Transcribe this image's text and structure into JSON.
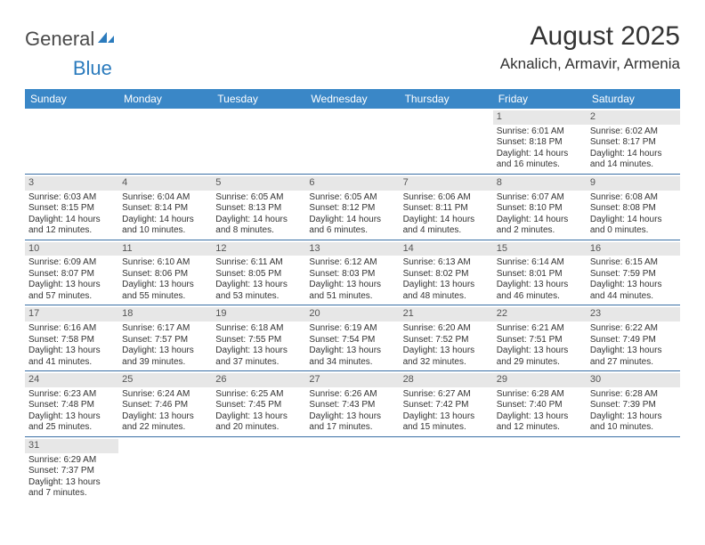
{
  "brand": {
    "general": "General",
    "blue": "Blue"
  },
  "title": "August 2025",
  "location": "Aknalich, Armavir, Armenia",
  "colors": {
    "headerBar": "#3a87c7",
    "rowDivider": "#3a6fa5",
    "dayNumBg": "#e7e7e7",
    "text": "#333333",
    "logoBlue": "#2b7bbd"
  },
  "dayHeaders": [
    "Sunday",
    "Monday",
    "Tuesday",
    "Wednesday",
    "Thursday",
    "Friday",
    "Saturday"
  ],
  "weeks": [
    [
      {
        "n": "",
        "sr": "",
        "ss": "",
        "dl": ""
      },
      {
        "n": "",
        "sr": "",
        "ss": "",
        "dl": ""
      },
      {
        "n": "",
        "sr": "",
        "ss": "",
        "dl": ""
      },
      {
        "n": "",
        "sr": "",
        "ss": "",
        "dl": ""
      },
      {
        "n": "",
        "sr": "",
        "ss": "",
        "dl": ""
      },
      {
        "n": "1",
        "sr": "Sunrise: 6:01 AM",
        "ss": "Sunset: 8:18 PM",
        "dl": "Daylight: 14 hours and 16 minutes."
      },
      {
        "n": "2",
        "sr": "Sunrise: 6:02 AM",
        "ss": "Sunset: 8:17 PM",
        "dl": "Daylight: 14 hours and 14 minutes."
      }
    ],
    [
      {
        "n": "3",
        "sr": "Sunrise: 6:03 AM",
        "ss": "Sunset: 8:15 PM",
        "dl": "Daylight: 14 hours and 12 minutes."
      },
      {
        "n": "4",
        "sr": "Sunrise: 6:04 AM",
        "ss": "Sunset: 8:14 PM",
        "dl": "Daylight: 14 hours and 10 minutes."
      },
      {
        "n": "5",
        "sr": "Sunrise: 6:05 AM",
        "ss": "Sunset: 8:13 PM",
        "dl": "Daylight: 14 hours and 8 minutes."
      },
      {
        "n": "6",
        "sr": "Sunrise: 6:05 AM",
        "ss": "Sunset: 8:12 PM",
        "dl": "Daylight: 14 hours and 6 minutes."
      },
      {
        "n": "7",
        "sr": "Sunrise: 6:06 AM",
        "ss": "Sunset: 8:11 PM",
        "dl": "Daylight: 14 hours and 4 minutes."
      },
      {
        "n": "8",
        "sr": "Sunrise: 6:07 AM",
        "ss": "Sunset: 8:10 PM",
        "dl": "Daylight: 14 hours and 2 minutes."
      },
      {
        "n": "9",
        "sr": "Sunrise: 6:08 AM",
        "ss": "Sunset: 8:08 PM",
        "dl": "Daylight: 14 hours and 0 minutes."
      }
    ],
    [
      {
        "n": "10",
        "sr": "Sunrise: 6:09 AM",
        "ss": "Sunset: 8:07 PM",
        "dl": "Daylight: 13 hours and 57 minutes."
      },
      {
        "n": "11",
        "sr": "Sunrise: 6:10 AM",
        "ss": "Sunset: 8:06 PM",
        "dl": "Daylight: 13 hours and 55 minutes."
      },
      {
        "n": "12",
        "sr": "Sunrise: 6:11 AM",
        "ss": "Sunset: 8:05 PM",
        "dl": "Daylight: 13 hours and 53 minutes."
      },
      {
        "n": "13",
        "sr": "Sunrise: 6:12 AM",
        "ss": "Sunset: 8:03 PM",
        "dl": "Daylight: 13 hours and 51 minutes."
      },
      {
        "n": "14",
        "sr": "Sunrise: 6:13 AM",
        "ss": "Sunset: 8:02 PM",
        "dl": "Daylight: 13 hours and 48 minutes."
      },
      {
        "n": "15",
        "sr": "Sunrise: 6:14 AM",
        "ss": "Sunset: 8:01 PM",
        "dl": "Daylight: 13 hours and 46 minutes."
      },
      {
        "n": "16",
        "sr": "Sunrise: 6:15 AM",
        "ss": "Sunset: 7:59 PM",
        "dl": "Daylight: 13 hours and 44 minutes."
      }
    ],
    [
      {
        "n": "17",
        "sr": "Sunrise: 6:16 AM",
        "ss": "Sunset: 7:58 PM",
        "dl": "Daylight: 13 hours and 41 minutes."
      },
      {
        "n": "18",
        "sr": "Sunrise: 6:17 AM",
        "ss": "Sunset: 7:57 PM",
        "dl": "Daylight: 13 hours and 39 minutes."
      },
      {
        "n": "19",
        "sr": "Sunrise: 6:18 AM",
        "ss": "Sunset: 7:55 PM",
        "dl": "Daylight: 13 hours and 37 minutes."
      },
      {
        "n": "20",
        "sr": "Sunrise: 6:19 AM",
        "ss": "Sunset: 7:54 PM",
        "dl": "Daylight: 13 hours and 34 minutes."
      },
      {
        "n": "21",
        "sr": "Sunrise: 6:20 AM",
        "ss": "Sunset: 7:52 PM",
        "dl": "Daylight: 13 hours and 32 minutes."
      },
      {
        "n": "22",
        "sr": "Sunrise: 6:21 AM",
        "ss": "Sunset: 7:51 PM",
        "dl": "Daylight: 13 hours and 29 minutes."
      },
      {
        "n": "23",
        "sr": "Sunrise: 6:22 AM",
        "ss": "Sunset: 7:49 PM",
        "dl": "Daylight: 13 hours and 27 minutes."
      }
    ],
    [
      {
        "n": "24",
        "sr": "Sunrise: 6:23 AM",
        "ss": "Sunset: 7:48 PM",
        "dl": "Daylight: 13 hours and 25 minutes."
      },
      {
        "n": "25",
        "sr": "Sunrise: 6:24 AM",
        "ss": "Sunset: 7:46 PM",
        "dl": "Daylight: 13 hours and 22 minutes."
      },
      {
        "n": "26",
        "sr": "Sunrise: 6:25 AM",
        "ss": "Sunset: 7:45 PM",
        "dl": "Daylight: 13 hours and 20 minutes."
      },
      {
        "n": "27",
        "sr": "Sunrise: 6:26 AM",
        "ss": "Sunset: 7:43 PM",
        "dl": "Daylight: 13 hours and 17 minutes."
      },
      {
        "n": "28",
        "sr": "Sunrise: 6:27 AM",
        "ss": "Sunset: 7:42 PM",
        "dl": "Daylight: 13 hours and 15 minutes."
      },
      {
        "n": "29",
        "sr": "Sunrise: 6:28 AM",
        "ss": "Sunset: 7:40 PM",
        "dl": "Daylight: 13 hours and 12 minutes."
      },
      {
        "n": "30",
        "sr": "Sunrise: 6:28 AM",
        "ss": "Sunset: 7:39 PM",
        "dl": "Daylight: 13 hours and 10 minutes."
      }
    ],
    [
      {
        "n": "31",
        "sr": "Sunrise: 6:29 AM",
        "ss": "Sunset: 7:37 PM",
        "dl": "Daylight: 13 hours and 7 minutes."
      },
      {
        "n": "",
        "sr": "",
        "ss": "",
        "dl": ""
      },
      {
        "n": "",
        "sr": "",
        "ss": "",
        "dl": ""
      },
      {
        "n": "",
        "sr": "",
        "ss": "",
        "dl": ""
      },
      {
        "n": "",
        "sr": "",
        "ss": "",
        "dl": ""
      },
      {
        "n": "",
        "sr": "",
        "ss": "",
        "dl": ""
      },
      {
        "n": "",
        "sr": "",
        "ss": "",
        "dl": ""
      }
    ]
  ]
}
